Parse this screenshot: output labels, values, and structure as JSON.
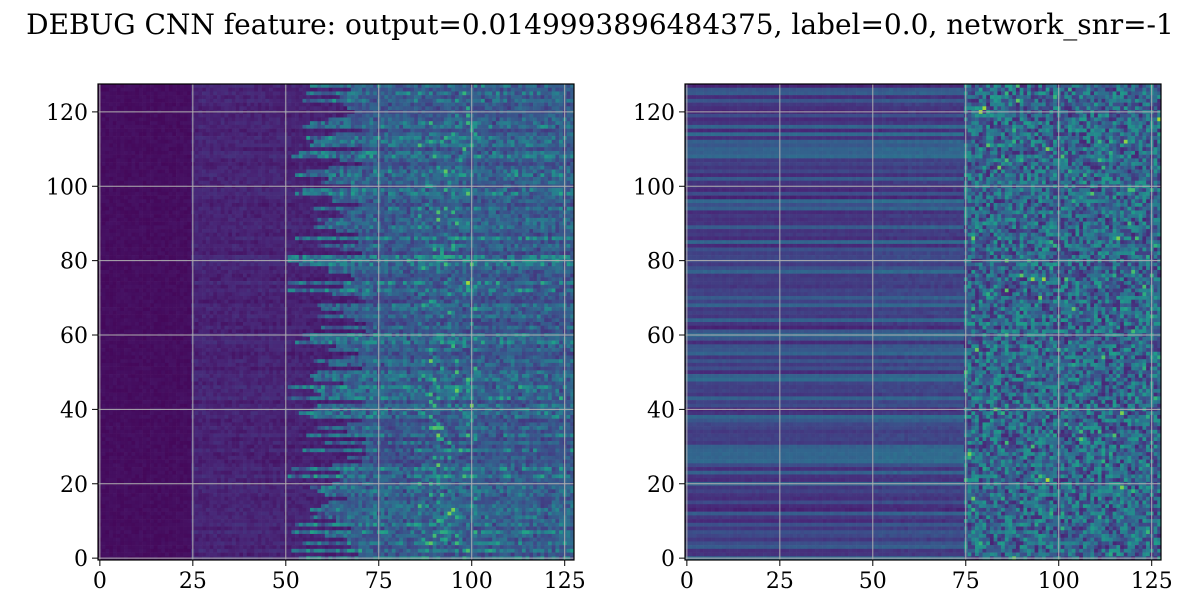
{
  "figure": {
    "suptitle": "DEBUG CNN feature: output=0.0149993896484375, label=0.0, network_snr=-1"
  },
  "chart_data": [
    {
      "type": "heatmap",
      "colormap": "viridis",
      "grid": true,
      "matrix_size": [
        128,
        128
      ],
      "xticks": [
        0,
        25,
        50,
        75,
        100,
        125
      ],
      "yticks": [
        0,
        20,
        40,
        60,
        80,
        100,
        120
      ],
      "xlim": [
        -0.5,
        127.5
      ],
      "ylim": [
        127.5,
        -0.5
      ],
      "description_of_values": {
        "columns_0_25": 0.04,
        "columns_25_50": 0.09,
        "columns_50_75": 0.22,
        "columns_75_128": 0.42,
        "peak_columns": [
          88,
          100
        ]
      }
    },
    {
      "type": "heatmap",
      "colormap": "viridis",
      "grid": true,
      "matrix_size": [
        128,
        128
      ],
      "xticks": [
        0,
        25,
        50,
        75,
        100,
        125
      ],
      "yticks": [
        0,
        20,
        40,
        60,
        80,
        100,
        120
      ],
      "xlim": [
        -0.5,
        127.5
      ],
      "ylim": [
        127.5,
        -0.5
      ],
      "description_of_values": {
        "columns_0_25": 0.18,
        "columns_25_50": 0.2,
        "columns_50_75": 0.22,
        "columns_75_128": 0.35,
        "peak_columns": [
          80,
          128
        ]
      }
    }
  ]
}
